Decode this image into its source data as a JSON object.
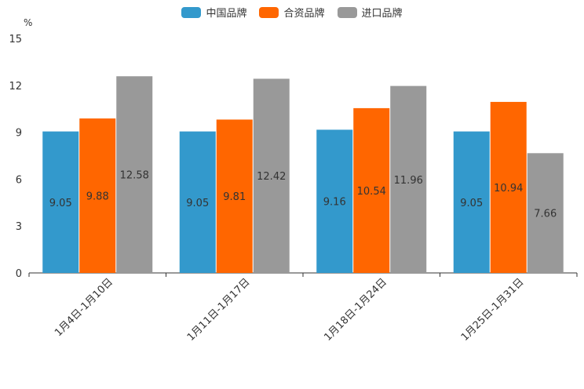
{
  "chart_data": {
    "type": "bar",
    "unit": "%",
    "categories": [
      "1月4日-1月10日",
      "1月11日-1月17日",
      "1月18日-1月24日",
      "1月25日-1月31日"
    ],
    "series": [
      {
        "name": "中国品牌",
        "color": "#3399cc",
        "values": [
          9.05,
          9.05,
          9.16,
          9.05
        ],
        "labels": [
          "9.05",
          "9.05",
          "9.16",
          "9.05"
        ]
      },
      {
        "name": "合资品牌",
        "color": "#ff6600",
        "values": [
          9.88,
          9.81,
          10.54,
          10.94
        ],
        "labels": [
          "9.88",
          "9.81",
          "10.54",
          "10.94"
        ]
      },
      {
        "name": "进口品牌",
        "color": "#999999",
        "values": [
          12.58,
          12.42,
          11.96,
          7.66
        ],
        "labels": [
          "12.58",
          "12.42",
          "11.96",
          "7.66"
        ]
      }
    ],
    "yticks": [
      "0",
      "3",
      "6",
      "9",
      "12",
      "15"
    ],
    "ylim": [
      0,
      15
    ],
    "legend_position": "top-center"
  }
}
